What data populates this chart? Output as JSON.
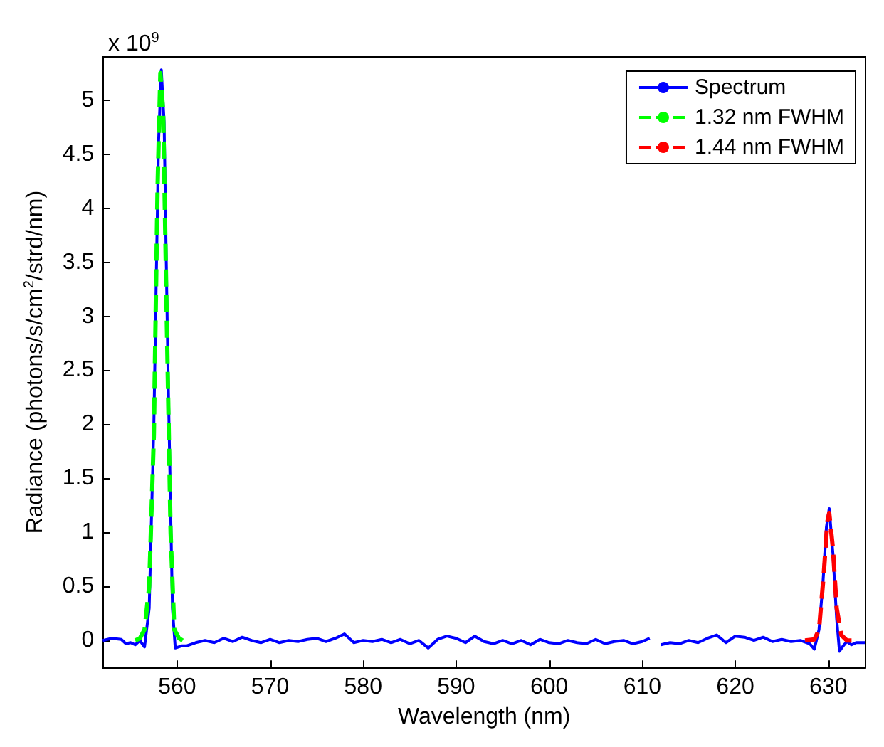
{
  "chart_data": {
    "type": "line",
    "xlabel": "Wavelength (nm)",
    "ylabel": "Radiance (photons/s/cm$^{2}$/strd/nm)",
    "annotations": [
      "x 10$^{9}$"
    ],
    "xlim": [
      552,
      634
    ],
    "xticks": [
      560,
      570,
      580,
      590,
      600,
      610,
      620,
      630
    ],
    "ylim": [
      -0.25,
      5.4
    ],
    "yticks": [
      0,
      0.5,
      1,
      1.5,
      2,
      2.5,
      3,
      3.5,
      4,
      4.5,
      5
    ],
    "grid": false,
    "legend": "top right",
    "marker": "none",
    "series": [
      {
        "name": "Spectrum",
        "color": "#0000ff",
        "line_style": "solid",
        "x": [
          552,
          553,
          554,
          554.5,
          555,
          555.5,
          556,
          556.5,
          557,
          557.5,
          558,
          558.3,
          558.6,
          559,
          559.5,
          559.8,
          560.5,
          561,
          562,
          563,
          564,
          565,
          566,
          567,
          568,
          569,
          570,
          571,
          572,
          573,
          574,
          575,
          576,
          577,
          578,
          579,
          580,
          581,
          582,
          583,
          584,
          585,
          586,
          587,
          588,
          589,
          590,
          591,
          592,
          593,
          594,
          595,
          596,
          597,
          598,
          599,
          600,
          601,
          602,
          603,
          604,
          605,
          606,
          607,
          608,
          609,
          610,
          610.8,
          611,
          611.3,
          611.5,
          612,
          613,
          614,
          615,
          616,
          617,
          618,
          619,
          620,
          621,
          622,
          623,
          624,
          625,
          626,
          627,
          628,
          628.5,
          629,
          629.4,
          629.8,
          630.1,
          630.5,
          630.9,
          631.2,
          631.6,
          632,
          632.5,
          633,
          634
        ],
        "values": [
          0,
          0.02,
          0.01,
          -0.03,
          -0.02,
          -0.04,
          0,
          -0.06,
          0.3,
          2.0,
          4.6,
          5.28,
          4.8,
          2.6,
          0.3,
          -0.07,
          -0.05,
          -0.05,
          -0.02,
          0,
          -0.02,
          0.02,
          -0.01,
          0.03,
          0,
          -0.02,
          0.01,
          -0.02,
          0,
          -0.01,
          0.01,
          0.02,
          -0.01,
          0.02,
          0.06,
          -0.02,
          0,
          -0.01,
          0.01,
          -0.02,
          0.01,
          -0.03,
          0,
          -0.07,
          0.01,
          0.04,
          0.02,
          -0.02,
          0.04,
          -0.01,
          -0.03,
          0,
          -0.03,
          0,
          -0.04,
          0.01,
          -0.02,
          -0.03,
          0,
          -0.02,
          -0.03,
          0.01,
          -0.03,
          -0.01,
          0,
          -0.03,
          -0.01,
          0.02,
          null,
          null,
          null,
          -0.04,
          -0.02,
          -0.03,
          0,
          -0.02,
          0.02,
          0.05,
          -0.02,
          0.04,
          0.03,
          0,
          0.03,
          -0.01,
          0.01,
          -0.01,
          0,
          -0.03,
          -0.08,
          0.1,
          0.5,
          1.05,
          1.22,
          0.8,
          0.2,
          -0.1,
          -0.05,
          -0.01,
          -0.04,
          -0.02,
          -0.02
        ]
      },
      {
        "name": "1.32 nm FWHM",
        "color": "#00ff00",
        "line_style": "dashed",
        "x": [
          555.5,
          556,
          556.5,
          557,
          557.5,
          557.9,
          558.2,
          558.5,
          558.9,
          559.3,
          559.7,
          560.2,
          560.6
        ],
        "values": [
          0,
          0.02,
          0.1,
          0.5,
          1.9,
          4.2,
          5.25,
          4.9,
          2.9,
          1.0,
          0.1,
          0.02,
          0
        ]
      },
      {
        "name": "1.44 nm FWHM",
        "color": "#ff0000",
        "line_style": "dashed",
        "x": [
          627.5,
          628.5,
          629,
          629.5,
          629.9,
          630.1,
          630.5,
          630.9,
          631.4,
          632,
          632.5
        ],
        "values": [
          0,
          0.01,
          0.1,
          0.6,
          1.1,
          1.18,
          0.85,
          0.3,
          0.05,
          0,
          0
        ]
      }
    ]
  }
}
